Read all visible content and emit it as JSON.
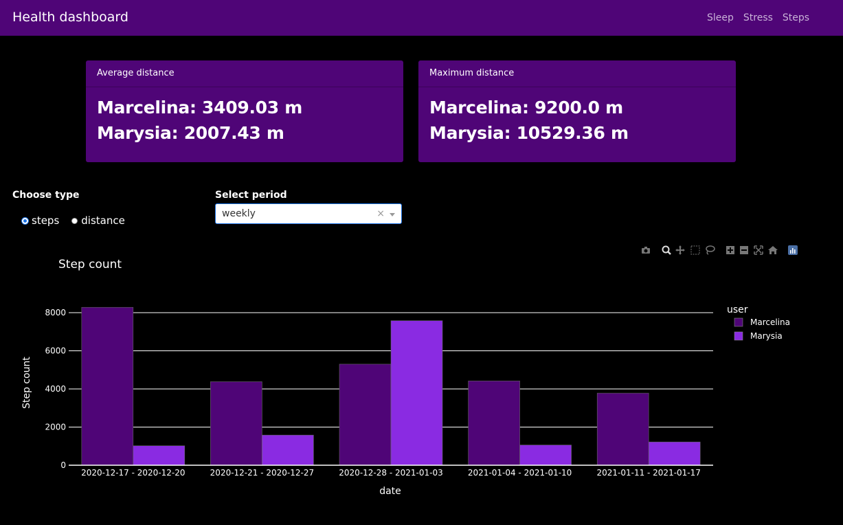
{
  "header": {
    "title": "Health dashboard",
    "nav": [
      "Sleep",
      "Stress",
      "Steps"
    ]
  },
  "cards": [
    {
      "title": "Average distance",
      "lines": [
        "Marcelina: 3409.03 m",
        "Marysia: 2007.43 m"
      ]
    },
    {
      "title": "Maximum distance",
      "lines": [
        "Marcelina: 9200.0 m",
        "Marysia: 10529.36 m"
      ]
    }
  ],
  "controls": {
    "type_label": "Choose type",
    "type_options": [
      "steps",
      "distance"
    ],
    "type_selected": "steps",
    "period_label": "Select period",
    "period_value": "weekly",
    "clear_glyph": "×"
  },
  "modebar_icons": [
    "camera-icon",
    "zoom-icon",
    "pan-icon",
    "box-select-icon",
    "lasso-icon",
    "zoom-in-icon",
    "zoom-out-icon",
    "autoscale-icon",
    "reset-axes-icon",
    "plotly-logo-icon"
  ],
  "colors": {
    "navbar": "#4f0577",
    "marcelina": "#4f0577",
    "marysia": "#8a2be2",
    "accent": "#1a73e8"
  },
  "chart_data": {
    "type": "bar",
    "title": "Step count",
    "xlabel": "date",
    "ylabel": "Step count",
    "categories": [
      "2020-12-17 - 2020-12-20",
      "2020-12-21 - 2020-12-27",
      "2020-12-28 - 2021-01-03",
      "2021-01-04 - 2021-01-10",
      "2021-01-11 - 2021-01-17"
    ],
    "series": [
      {
        "name": "Marcelina",
        "values": [
          8280,
          4380,
          5300,
          4420,
          3780
        ]
      },
      {
        "name": "Marysia",
        "values": [
          1020,
          1580,
          7580,
          1060,
          1220
        ]
      }
    ],
    "ylim": [
      0,
      8800
    ],
    "yticks": [
      0,
      2000,
      4000,
      6000,
      8000
    ],
    "legend_title": "user",
    "legend_position": "top-right",
    "grid": true
  }
}
